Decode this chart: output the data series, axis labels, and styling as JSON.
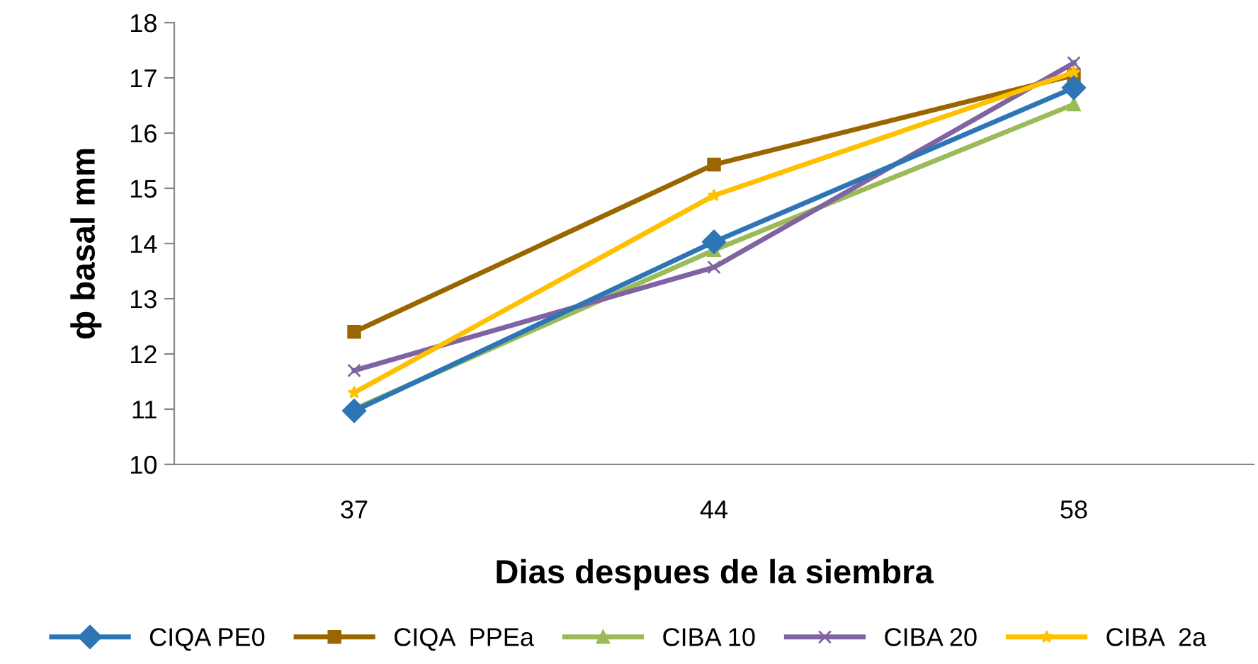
{
  "chart_data": {
    "type": "line",
    "xlabel": "Dias despues de la siembra",
    "ylabel": "ф basal mm",
    "categories": [
      "37",
      "44",
      "58"
    ],
    "series": [
      {
        "name": "CIQA PE0",
        "color": "#2e75b6",
        "marker": "diamond",
        "values": [
          10.97,
          14.03,
          16.82
        ]
      },
      {
        "name": "CIQA  PPEa",
        "color": "#996600",
        "marker": "square",
        "values": [
          12.4,
          15.43,
          17.05
        ]
      },
      {
        "name": "CIBA 10",
        "color": "#9bbb59",
        "marker": "triangle",
        "values": [
          11.0,
          13.88,
          16.52
        ]
      },
      {
        "name": "CIBA 20",
        "color": "#8064a2",
        "marker": "cross",
        "values": [
          11.7,
          13.57,
          17.27
        ]
      },
      {
        "name": "CIBA  2a",
        "color": "#ffc000",
        "marker": "star",
        "values": [
          11.3,
          14.87,
          17.1
        ]
      }
    ],
    "ylim": [
      10,
      18
    ],
    "yticks": [
      10,
      11,
      12,
      13,
      14,
      15,
      16,
      17,
      18
    ],
    "grid": false,
    "legend": "bottom",
    "line_style": "solid"
  }
}
